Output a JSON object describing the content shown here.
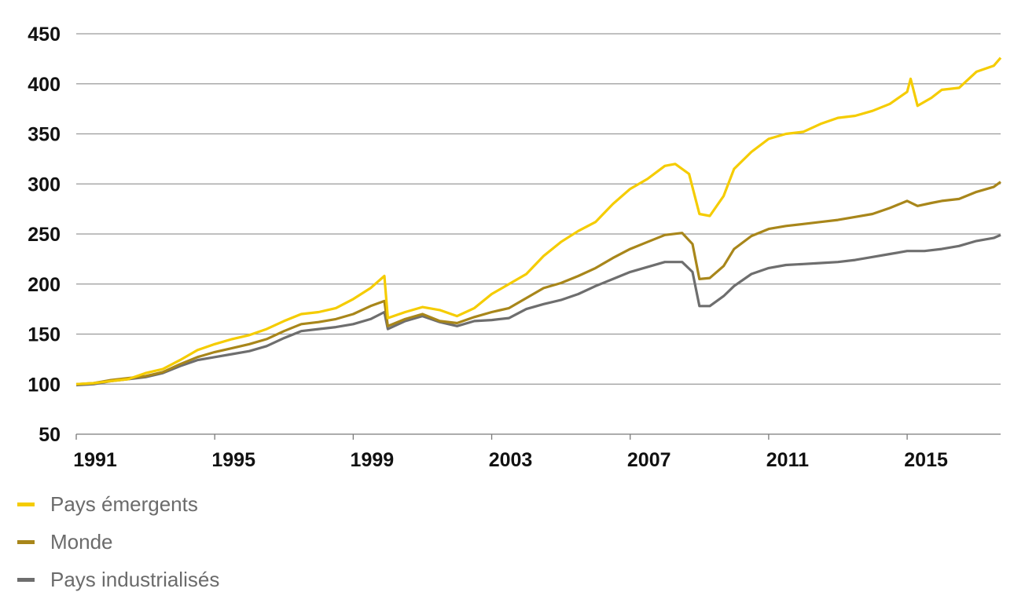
{
  "chart_data": {
    "type": "line",
    "title": "",
    "xlabel": "",
    "ylabel": "",
    "xlim": [
      1991,
      2017.7
    ],
    "ylim": [
      50,
      450
    ],
    "yticks": [
      50,
      100,
      150,
      200,
      250,
      300,
      350,
      400,
      450
    ],
    "yticklabels": [
      "50",
      "100",
      "150",
      "200",
      "250",
      "300",
      "350",
      "400",
      "450"
    ],
    "xticks": [
      1991,
      1995,
      1999,
      2003,
      2007,
      2011,
      2015
    ],
    "xticklabels": [
      "1991",
      "1995",
      "1999",
      "2003",
      "2007",
      "2011",
      "2015"
    ],
    "grid": "horizontal",
    "legend_position": "bottom-left",
    "series": [
      {
        "name": "Pays émergents",
        "color": "#f5cc00",
        "points": [
          [
            1991,
            100
          ],
          [
            1991.5,
            101
          ],
          [
            1992,
            103
          ],
          [
            1992.5,
            105
          ],
          [
            1993,
            111
          ],
          [
            1993.5,
            115
          ],
          [
            1994,
            124
          ],
          [
            1994.5,
            134
          ],
          [
            1995,
            140
          ],
          [
            1995.5,
            145
          ],
          [
            1996,
            149
          ],
          [
            1996.5,
            155
          ],
          [
            1997,
            163
          ],
          [
            1997.5,
            170
          ],
          [
            1998,
            172
          ],
          [
            1998.5,
            176
          ],
          [
            1999,
            185
          ],
          [
            1999.5,
            196
          ],
          [
            1999.9,
            208
          ],
          [
            2000.0,
            166
          ],
          [
            2000.5,
            172
          ],
          [
            2001,
            177
          ],
          [
            2001.5,
            174
          ],
          [
            2002,
            168
          ],
          [
            2002.5,
            176
          ],
          [
            2003,
            190
          ],
          [
            2003.5,
            200
          ],
          [
            2004,
            210
          ],
          [
            2004.5,
            228
          ],
          [
            2005,
            242
          ],
          [
            2005.5,
            253
          ],
          [
            2006,
            262
          ],
          [
            2006.5,
            280
          ],
          [
            2007,
            295
          ],
          [
            2007.5,
            305
          ],
          [
            2008,
            318
          ],
          [
            2008.3,
            320
          ],
          [
            2008.7,
            310
          ],
          [
            2009,
            270
          ],
          [
            2009.3,
            268
          ],
          [
            2009.7,
            288
          ],
          [
            2010,
            315
          ],
          [
            2010.5,
            332
          ],
          [
            2011,
            345
          ],
          [
            2011.5,
            350
          ],
          [
            2012,
            352
          ],
          [
            2012.5,
            360
          ],
          [
            2013,
            366
          ],
          [
            2013.5,
            368
          ],
          [
            2014,
            373
          ],
          [
            2014.5,
            380
          ],
          [
            2015,
            392
          ],
          [
            2015.1,
            405
          ],
          [
            2015.3,
            378
          ],
          [
            2015.7,
            386
          ],
          [
            2016,
            394
          ],
          [
            2016.5,
            396
          ],
          [
            2017,
            412
          ],
          [
            2017.5,
            418
          ],
          [
            2017.7,
            426
          ]
        ]
      },
      {
        "name": "Monde",
        "color": "#a8861a",
        "points": [
          [
            1991,
            100
          ],
          [
            1991.5,
            101
          ],
          [
            1992,
            104
          ],
          [
            1992.5,
            106
          ],
          [
            1993,
            108
          ],
          [
            1993.5,
            112
          ],
          [
            1994,
            120
          ],
          [
            1994.5,
            127
          ],
          [
            1995,
            132
          ],
          [
            1995.5,
            136
          ],
          [
            1996,
            140
          ],
          [
            1996.5,
            145
          ],
          [
            1997,
            153
          ],
          [
            1997.5,
            160
          ],
          [
            1998,
            162
          ],
          [
            1998.5,
            165
          ],
          [
            1999,
            170
          ],
          [
            1999.5,
            178
          ],
          [
            1999.9,
            183
          ],
          [
            2000.0,
            158
          ],
          [
            2000.5,
            165
          ],
          [
            2001,
            170
          ],
          [
            2001.5,
            163
          ],
          [
            2002,
            161
          ],
          [
            2002.5,
            167
          ],
          [
            2003,
            172
          ],
          [
            2003.5,
            176
          ],
          [
            2004,
            186
          ],
          [
            2004.5,
            196
          ],
          [
            2005,
            201
          ],
          [
            2005.5,
            208
          ],
          [
            2006,
            216
          ],
          [
            2006.5,
            226
          ],
          [
            2007,
            235
          ],
          [
            2007.5,
            242
          ],
          [
            2008,
            249
          ],
          [
            2008.5,
            251
          ],
          [
            2008.8,
            240
          ],
          [
            2009,
            205
          ],
          [
            2009.3,
            206
          ],
          [
            2009.7,
            218
          ],
          [
            2010,
            235
          ],
          [
            2010.5,
            248
          ],
          [
            2011,
            255
          ],
          [
            2011.5,
            258
          ],
          [
            2012,
            260
          ],
          [
            2012.5,
            262
          ],
          [
            2013,
            264
          ],
          [
            2013.5,
            267
          ],
          [
            2014,
            270
          ],
          [
            2014.5,
            276
          ],
          [
            2015,
            283
          ],
          [
            2015.3,
            278
          ],
          [
            2015.7,
            281
          ],
          [
            2016,
            283
          ],
          [
            2016.5,
            285
          ],
          [
            2017,
            292
          ],
          [
            2017.5,
            297
          ],
          [
            2017.7,
            302
          ]
        ]
      },
      {
        "name": "Pays industrialisés",
        "color": "#6e6e6e",
        "points": [
          [
            1991,
            99
          ],
          [
            1991.5,
            100
          ],
          [
            1992,
            103
          ],
          [
            1992.5,
            105
          ],
          [
            1993,
            107
          ],
          [
            1993.5,
            111
          ],
          [
            1994,
            118
          ],
          [
            1994.5,
            124
          ],
          [
            1995,
            127
          ],
          [
            1995.5,
            130
          ],
          [
            1996,
            133
          ],
          [
            1996.5,
            138
          ],
          [
            1997,
            146
          ],
          [
            1997.5,
            153
          ],
          [
            1998,
            155
          ],
          [
            1998.5,
            157
          ],
          [
            1999,
            160
          ],
          [
            1999.5,
            165
          ],
          [
            1999.9,
            172
          ],
          [
            2000.0,
            155
          ],
          [
            2000.5,
            163
          ],
          [
            2001,
            168
          ],
          [
            2001.5,
            162
          ],
          [
            2002,
            158
          ],
          [
            2002.5,
            163
          ],
          [
            2003,
            164
          ],
          [
            2003.5,
            166
          ],
          [
            2004,
            175
          ],
          [
            2004.5,
            180
          ],
          [
            2005,
            184
          ],
          [
            2005.5,
            190
          ],
          [
            2006,
            198
          ],
          [
            2006.5,
            205
          ],
          [
            2007,
            212
          ],
          [
            2007.5,
            217
          ],
          [
            2008,
            222
          ],
          [
            2008.5,
            222
          ],
          [
            2008.8,
            212
          ],
          [
            2009,
            178
          ],
          [
            2009.3,
            178
          ],
          [
            2009.7,
            188
          ],
          [
            2010,
            198
          ],
          [
            2010.5,
            210
          ],
          [
            2011,
            216
          ],
          [
            2011.5,
            219
          ],
          [
            2012,
            220
          ],
          [
            2012.5,
            221
          ],
          [
            2013,
            222
          ],
          [
            2013.5,
            224
          ],
          [
            2014,
            227
          ],
          [
            2014.5,
            230
          ],
          [
            2015,
            233
          ],
          [
            2015.5,
            233
          ],
          [
            2016,
            235
          ],
          [
            2016.5,
            238
          ],
          [
            2017,
            243
          ],
          [
            2017.5,
            246
          ],
          [
            2017.7,
            249
          ]
        ]
      }
    ]
  }
}
